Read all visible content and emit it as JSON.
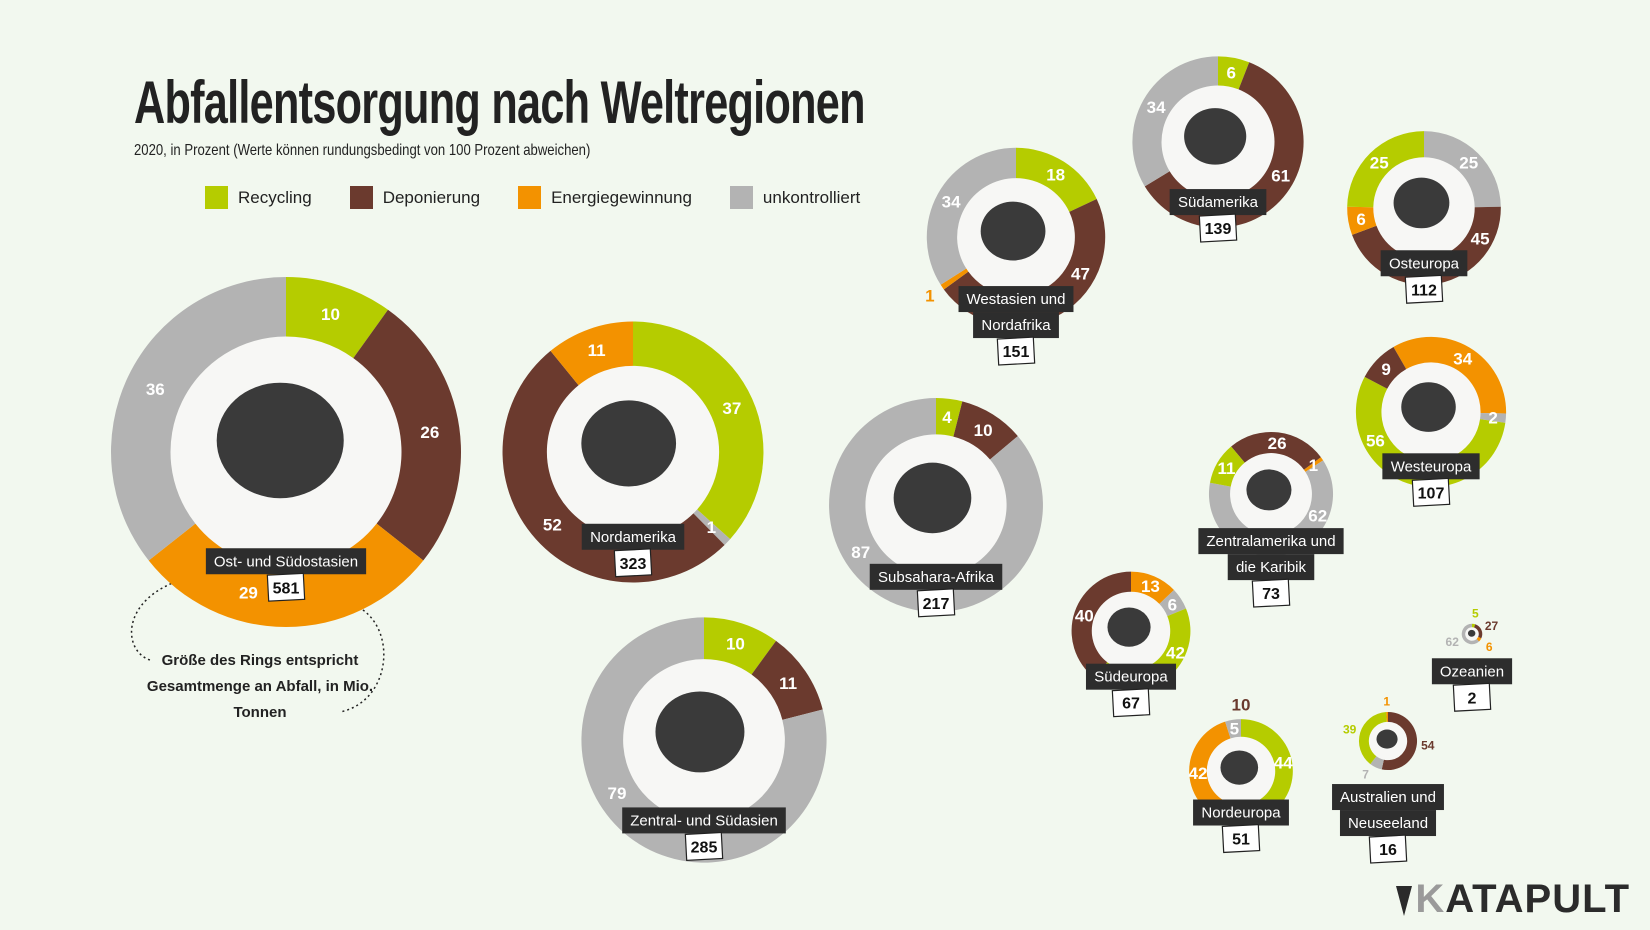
{
  "title": "Abfallentsorgung nach Weltregionen",
  "subtitle": "2020, in Prozent (Werte können rundungsbedingt von 100 Prozent abweichen)",
  "legend": [
    {
      "key": "R",
      "label": "Recycling",
      "color": "#b5cc00"
    },
    {
      "key": "D",
      "label": "Deponierung",
      "color": "#6b3a2e"
    },
    {
      "key": "E",
      "label": "Energiegewinnung",
      "color": "#f39200"
    },
    {
      "key": "U",
      "label": "unkontrolliert",
      "color": "#b3b3b3"
    }
  ],
  "note": "Größe des Rings entspricht Gesamtmenge an Abfall, in Mio. Tonnen",
  "logo": "KATAPULT",
  "chart_data": {
    "type": "donut",
    "unit": "Prozent; Gesamtmenge in Mio. Tonnen",
    "regions": [
      {
        "name": "Ost- und Südostasien",
        "total": 581,
        "segments": [
          [
            "R",
            10
          ],
          [
            "D",
            26
          ],
          [
            "E",
            29
          ],
          [
            "U",
            36
          ]
        ]
      },
      {
        "name": "Nordamerika",
        "total": 323,
        "segments": [
          [
            "R",
            37
          ],
          [
            "U",
            1
          ],
          [
            "D",
            52
          ],
          [
            "E",
            11
          ]
        ]
      },
      {
        "name": "Zentral- und Südasien",
        "total": 285,
        "segments": [
          [
            "R",
            10
          ],
          [
            "D",
            11
          ],
          [
            "U",
            79
          ]
        ]
      },
      {
        "name": "Subsahara-Afrika",
        "total": 217,
        "segments": [
          [
            "R",
            4
          ],
          [
            "D",
            10
          ],
          [
            "U",
            87
          ]
        ]
      },
      {
        "name": "Westasien und Nordafrika",
        "total": 151,
        "segments": [
          [
            "R",
            18
          ],
          [
            "D",
            47
          ],
          [
            "E",
            1
          ],
          [
            "U",
            34
          ]
        ]
      },
      {
        "name": "Südamerika",
        "total": 139,
        "segments": [
          [
            "R",
            6
          ],
          [
            "D",
            61
          ],
          [
            "U",
            34
          ]
        ]
      },
      {
        "name": "Osteuropa",
        "total": 112,
        "segments": [
          [
            "U",
            25
          ],
          [
            "D",
            45
          ],
          [
            "E",
            6
          ],
          [
            "R",
            25
          ]
        ]
      },
      {
        "name": "Westeuropa",
        "total": 107,
        "segments": [
          [
            "E",
            34
          ],
          [
            "U",
            2
          ],
          [
            "R",
            56
          ],
          [
            "D",
            9
          ]
        ]
      },
      {
        "name": "Zentralamerika und die Karibik",
        "total": 73,
        "segments": [
          [
            "D",
            26
          ],
          [
            "E",
            1
          ],
          [
            "U",
            62
          ],
          [
            "R",
            11
          ]
        ]
      },
      {
        "name": "Südeuropa",
        "total": 67,
        "segments": [
          [
            "E",
            13
          ],
          [
            "U",
            6
          ],
          [
            "R",
            42
          ],
          [
            "D",
            40
          ]
        ]
      },
      {
        "name": "Nordeuropa",
        "total": 51,
        "segments": [
          [
            "R",
            44
          ],
          [
            "D",
            10
          ],
          [
            "E",
            42
          ],
          [
            "U",
            5
          ]
        ]
      },
      {
        "name": "Australien und Neuseeland",
        "total": 16,
        "segments": [
          [
            "D",
            54
          ],
          [
            "U",
            7
          ],
          [
            "R",
            39
          ],
          [
            "E",
            1
          ]
        ]
      },
      {
        "name": "Ozeanien",
        "total": 2,
        "segments": [
          [
            "R",
            5
          ],
          [
            "D",
            27
          ],
          [
            "E",
            6
          ],
          [
            "U",
            62
          ]
        ]
      }
    ]
  }
}
